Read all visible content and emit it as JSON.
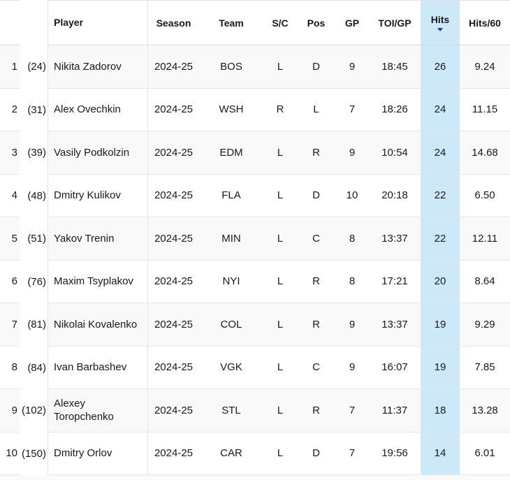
{
  "table": {
    "name": "hits-leaderboard",
    "columns": [
      {
        "key": "rank",
        "label": "",
        "header_named": "rank"
      },
      {
        "key": "paren",
        "label": "",
        "header_named": "overall-rank"
      },
      {
        "key": "player",
        "label": "Player",
        "header_named": "player"
      },
      {
        "key": "season",
        "label": "Season",
        "header_named": "season"
      },
      {
        "key": "team",
        "label": "Team",
        "header_named": "team"
      },
      {
        "key": "sc",
        "label": "S/C",
        "header_named": "shoots-catches"
      },
      {
        "key": "pos",
        "label": "Pos",
        "header_named": "position"
      },
      {
        "key": "gp",
        "label": "GP",
        "header_named": "games-played"
      },
      {
        "key": "toi",
        "label": "TOI/GP",
        "header_named": "toi-per-gp"
      },
      {
        "key": "hits",
        "label": "Hits",
        "header_named": "hits",
        "sorted": "desc",
        "highlighted": true
      },
      {
        "key": "hits60",
        "label": "Hits/60",
        "header_named": "hits-per-60"
      }
    ],
    "rows": [
      {
        "rank": "1",
        "paren": "(24)",
        "player": "Nikita Zadorov",
        "season": "2024-25",
        "team": "BOS",
        "sc": "L",
        "pos": "D",
        "gp": "9",
        "toi": "18:45",
        "hits": "26",
        "hits60": "9.24"
      },
      {
        "rank": "2",
        "paren": "(31)",
        "player": "Alex Ovechkin",
        "season": "2024-25",
        "team": "WSH",
        "sc": "R",
        "pos": "L",
        "gp": "7",
        "toi": "18:26",
        "hits": "24",
        "hits60": "11.15"
      },
      {
        "rank": "3",
        "paren": "(39)",
        "player": "Vasily Podkolzin",
        "season": "2024-25",
        "team": "EDM",
        "sc": "L",
        "pos": "R",
        "gp": "9",
        "toi": "10:54",
        "hits": "24",
        "hits60": "14.68"
      },
      {
        "rank": "4",
        "paren": "(48)",
        "player": "Dmitry Kulikov",
        "season": "2024-25",
        "team": "FLA",
        "sc": "L",
        "pos": "D",
        "gp": "10",
        "toi": "20:18",
        "hits": "22",
        "hits60": "6.50"
      },
      {
        "rank": "5",
        "paren": "(51)",
        "player": "Yakov Trenin",
        "season": "2024-25",
        "team": "MIN",
        "sc": "L",
        "pos": "C",
        "gp": "8",
        "toi": "13:37",
        "hits": "22",
        "hits60": "12.11"
      },
      {
        "rank": "6",
        "paren": "(76)",
        "player": "Maxim Tsyplakov",
        "season": "2024-25",
        "team": "NYI",
        "sc": "L",
        "pos": "R",
        "gp": "8",
        "toi": "17:21",
        "hits": "20",
        "hits60": "8.64"
      },
      {
        "rank": "7",
        "paren": "(81)",
        "player": "Nikolai Kovalenko",
        "season": "2024-25",
        "team": "COL",
        "sc": "L",
        "pos": "R",
        "gp": "9",
        "toi": "13:37",
        "hits": "19",
        "hits60": "9.29"
      },
      {
        "rank": "8",
        "paren": "(84)",
        "player": "Ivan Barbashev",
        "season": "2024-25",
        "team": "VGK",
        "sc": "L",
        "pos": "C",
        "gp": "9",
        "toi": "16:07",
        "hits": "19",
        "hits60": "7.85"
      },
      {
        "rank": "9",
        "paren": "(102)",
        "player": "Alexey Toropchenko",
        "season": "2024-25",
        "team": "STL",
        "sc": "L",
        "pos": "R",
        "gp": "7",
        "toi": "11:37",
        "hits": "18",
        "hits60": "13.28"
      },
      {
        "rank": "10",
        "paren": "(150)",
        "player": "Dmitry Orlov",
        "season": "2024-25",
        "team": "CAR",
        "sc": "L",
        "pos": "D",
        "gp": "7",
        "toi": "19:56",
        "hits": "14",
        "hits60": "6.01"
      }
    ]
  },
  "colors": {
    "text": "#16181d",
    "hits_column_bg": "#cde9f8",
    "sort_caret": "#1f4387",
    "row_stripe": "#f9f9f9",
    "row_border": "#e6e6e6",
    "header_border": "#d9d9d9",
    "column_border": "#e3e3e3"
  },
  "sort": {
    "column": "Hits",
    "direction": "desc"
  }
}
